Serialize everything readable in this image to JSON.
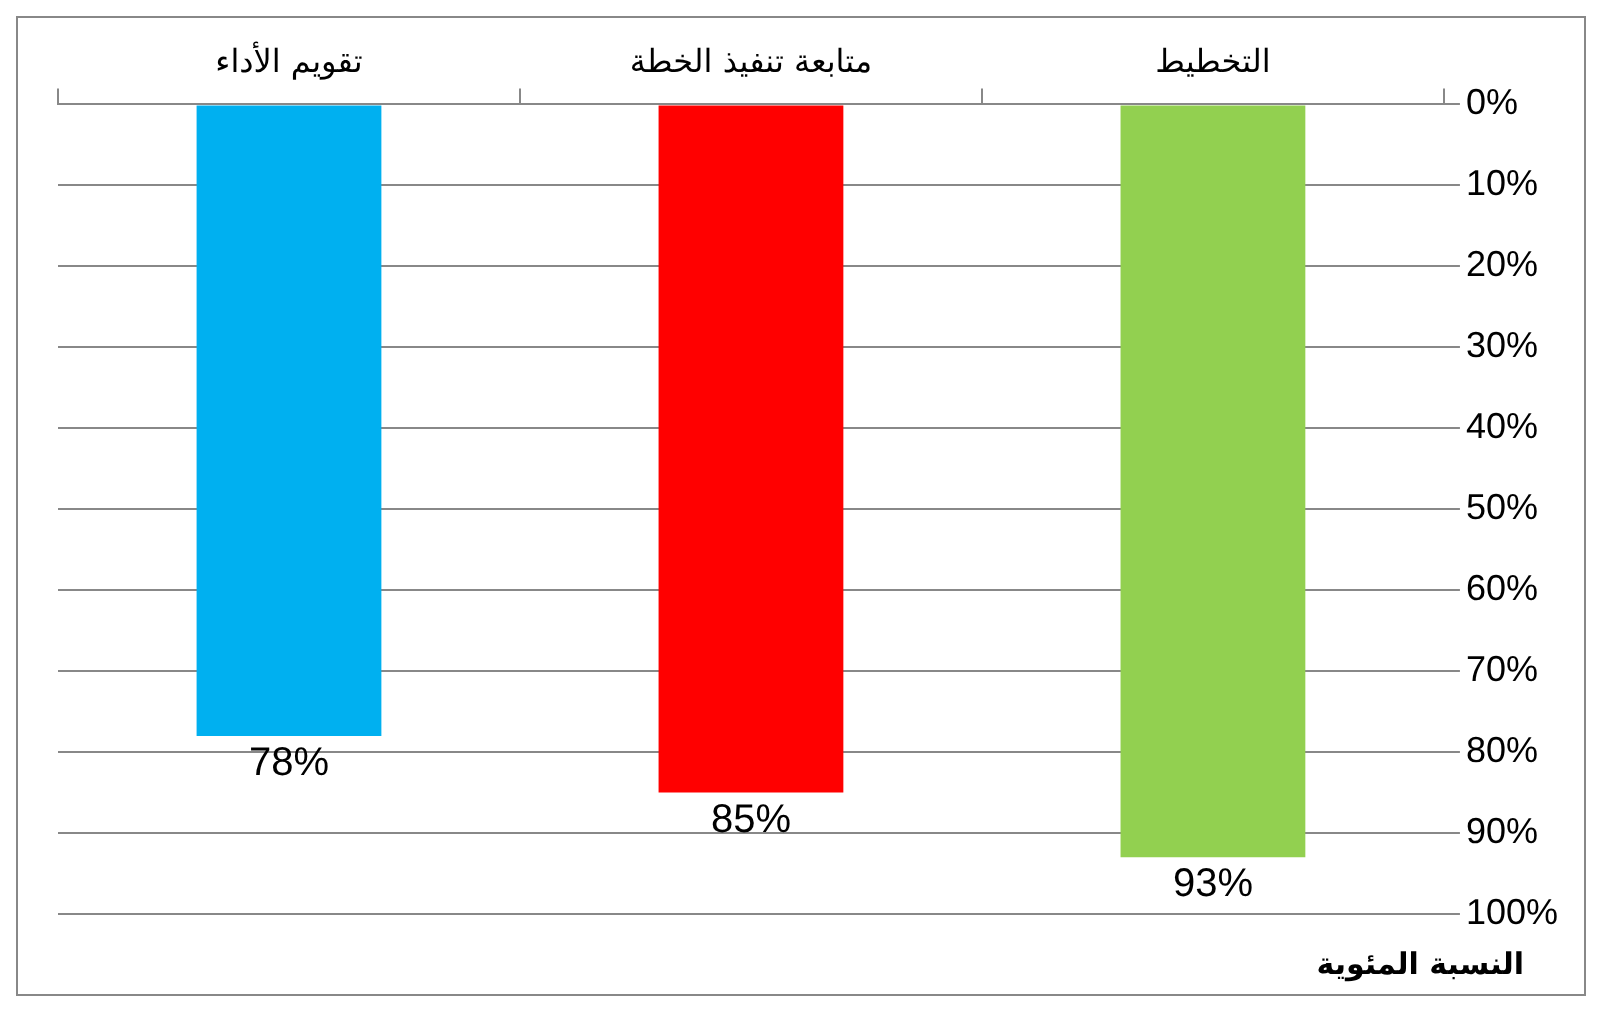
{
  "chart_data": {
    "type": "bar",
    "annotations": [
      "النسبة المئوية"
    ],
    "categories": [
      "تقويم الأداء",
      "متابعة تنفيذ الخطة",
      "التخطيط"
    ],
    "values": [
      78,
      85,
      93
    ],
    "colors": [
      "#00b0f0",
      "#ff0000",
      "#92d050"
    ],
    "ylim": [
      100,
      0
    ],
    "yticks": [
      {
        "value": 0,
        "label": "0%"
      },
      {
        "value": 10,
        "label": "10%"
      },
      {
        "value": 20,
        "label": "20%"
      },
      {
        "value": 30,
        "label": "30%"
      },
      {
        "value": 40,
        "label": "40%"
      },
      {
        "value": 50,
        "label": "50%"
      },
      {
        "value": 60,
        "label": "60%"
      },
      {
        "value": 70,
        "label": "70%"
      },
      {
        "value": 80,
        "label": "80%"
      },
      {
        "value": 90,
        "label": "90%"
      },
      {
        "value": 100,
        "label": "100%"
      }
    ],
    "value_labels": [
      "78%",
      "85%",
      "93%"
    ],
    "grid": "y",
    "legend": false
  }
}
